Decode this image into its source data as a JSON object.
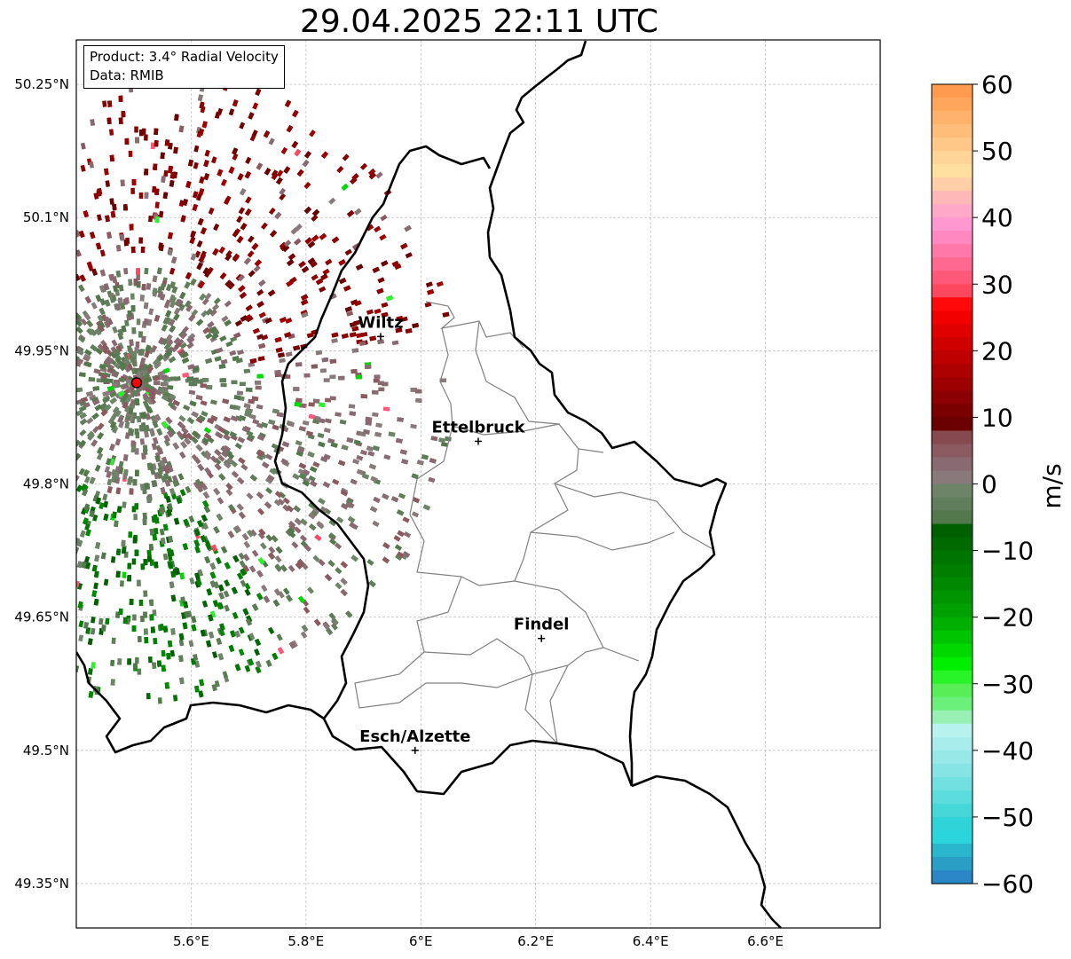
{
  "title": "29.04.2025 22:11 UTC",
  "info": {
    "product": "Product: 3.4° Radial Velocity",
    "data": "Data: RMIB"
  },
  "map": {
    "lon_range": [
      5.4,
      6.8
    ],
    "lat_range": [
      49.3,
      50.3
    ],
    "lat_ticks": [
      {
        "value": 50.25,
        "label": "50.25°N"
      },
      {
        "value": 50.1,
        "label": "50.1°N"
      },
      {
        "value": 49.95,
        "label": "49.95°N"
      },
      {
        "value": 49.8,
        "label": "49.8°N"
      },
      {
        "value": 49.65,
        "label": "49.65°N"
      },
      {
        "value": 49.5,
        "label": "49.5°N"
      },
      {
        "value": 49.35,
        "label": "49.35°N"
      }
    ],
    "lon_ticks": [
      {
        "value": 5.6,
        "label": "5.6°E"
      },
      {
        "value": 5.8,
        "label": "5.8°E"
      },
      {
        "value": 6.0,
        "label": "6°E"
      },
      {
        "value": 6.2,
        "label": "6.2°E"
      },
      {
        "value": 6.4,
        "label": "6.4°E"
      },
      {
        "value": 6.6,
        "label": "6.6°E"
      }
    ],
    "grid": true,
    "radar": {
      "lon": 5.505,
      "lat": 49.914,
      "color": "#ff0000"
    },
    "places": [
      {
        "name": "Wiltz",
        "lon": 5.93,
        "lat": 49.966
      },
      {
        "name": "Ettelbruck",
        "lon": 6.1,
        "lat": 49.848
      },
      {
        "name": "Findel",
        "lon": 6.21,
        "lat": 49.626
      },
      {
        "name": "Esch/Alzette",
        "lon": 5.99,
        "lat": 49.5
      }
    ]
  },
  "colorbar": {
    "label": "m/s",
    "range": [
      -60,
      60
    ],
    "ticks": [
      {
        "value": 60,
        "label": "60"
      },
      {
        "value": 50,
        "label": "50"
      },
      {
        "value": 40,
        "label": "40"
      },
      {
        "value": 30,
        "label": "30"
      },
      {
        "value": 20,
        "label": "20"
      },
      {
        "value": 10,
        "label": "10"
      },
      {
        "value": 0,
        "label": "0"
      },
      {
        "value": -10,
        "label": "−10"
      },
      {
        "value": -20,
        "label": "−20"
      },
      {
        "value": -30,
        "label": "−30"
      },
      {
        "value": -40,
        "label": "−40"
      },
      {
        "value": -50,
        "label": "−50"
      },
      {
        "value": -60,
        "label": "−60"
      }
    ],
    "bands": [
      {
        "from": 58,
        "to": 60,
        "color": "#ff9a4e"
      },
      {
        "from": 56,
        "to": 58,
        "color": "#ffa65c"
      },
      {
        "from": 54,
        "to": 56,
        "color": "#ffb26b"
      },
      {
        "from": 52,
        "to": 54,
        "color": "#ffbd7a"
      },
      {
        "from": 50,
        "to": 52,
        "color": "#ffc888"
      },
      {
        "from": 48,
        "to": 50,
        "color": "#ffd496"
      },
      {
        "from": 46,
        "to": 48,
        "color": "#ffe09e"
      },
      {
        "from": 44,
        "to": 46,
        "color": "#ffd0a8"
      },
      {
        "from": 42,
        "to": 44,
        "color": "#ffb8b8"
      },
      {
        "from": 40,
        "to": 42,
        "color": "#ffa8c8"
      },
      {
        "from": 38,
        "to": 40,
        "color": "#ff98d0"
      },
      {
        "from": 36,
        "to": 38,
        "color": "#ff88c0"
      },
      {
        "from": 34,
        "to": 36,
        "color": "#ff78a8"
      },
      {
        "from": 32,
        "to": 34,
        "color": "#ff6890"
      },
      {
        "from": 30,
        "to": 32,
        "color": "#ff5878"
      },
      {
        "from": 28,
        "to": 30,
        "color": "#ff4860"
      },
      {
        "from": 26,
        "to": 28,
        "color": "#ff0a0a"
      },
      {
        "from": 24,
        "to": 26,
        "color": "#f20000"
      },
      {
        "from": 22,
        "to": 24,
        "color": "#e00000"
      },
      {
        "from": 20,
        "to": 22,
        "color": "#cf0000"
      },
      {
        "from": 18,
        "to": 20,
        "color": "#be0000"
      },
      {
        "from": 16,
        "to": 18,
        "color": "#ad0000"
      },
      {
        "from": 14,
        "to": 16,
        "color": "#9c0000"
      },
      {
        "from": 12,
        "to": 14,
        "color": "#8b0000"
      },
      {
        "from": 10,
        "to": 12,
        "color": "#7a0000"
      },
      {
        "from": 8,
        "to": 10,
        "color": "#6b0000"
      },
      {
        "from": 6,
        "to": 8,
        "color": "#864a4e"
      },
      {
        "from": 4,
        "to": 6,
        "color": "#8a5a60"
      },
      {
        "from": 2,
        "to": 4,
        "color": "#8a6a72"
      },
      {
        "from": 0,
        "to": 2,
        "color": "#887a7a"
      },
      {
        "from": -2,
        "to": 0,
        "color": "#6e8468"
      },
      {
        "from": -4,
        "to": -2,
        "color": "#607e5a"
      },
      {
        "from": -6,
        "to": -4,
        "color": "#52784c"
      },
      {
        "from": -8,
        "to": -6,
        "color": "#006000"
      },
      {
        "from": -10,
        "to": -8,
        "color": "#006a00"
      },
      {
        "from": -12,
        "to": -10,
        "color": "#007400"
      },
      {
        "from": -14,
        "to": -12,
        "color": "#007e00"
      },
      {
        "from": -16,
        "to": -14,
        "color": "#008800"
      },
      {
        "from": -18,
        "to": -16,
        "color": "#009400"
      },
      {
        "from": -20,
        "to": -18,
        "color": "#00a000"
      },
      {
        "from": -22,
        "to": -20,
        "color": "#00b000"
      },
      {
        "from": -24,
        "to": -22,
        "color": "#00c400"
      },
      {
        "from": -26,
        "to": -24,
        "color": "#00d800"
      },
      {
        "from": -28,
        "to": -26,
        "color": "#00ee00"
      },
      {
        "from": -30,
        "to": -28,
        "color": "#28f428"
      },
      {
        "from": -32,
        "to": -30,
        "color": "#58ee58"
      },
      {
        "from": -34,
        "to": -32,
        "color": "#6cf07c"
      },
      {
        "from": -36,
        "to": -34,
        "color": "#98f0b4"
      },
      {
        "from": -38,
        "to": -36,
        "color": "#b8f2ee"
      },
      {
        "from": -40,
        "to": -38,
        "color": "#a8ecec"
      },
      {
        "from": -42,
        "to": -40,
        "color": "#98e8e8"
      },
      {
        "from": -44,
        "to": -42,
        "color": "#86e4e4"
      },
      {
        "from": -46,
        "to": -44,
        "color": "#72e0e0"
      },
      {
        "from": -48,
        "to": -46,
        "color": "#5cdcdc"
      },
      {
        "from": -50,
        "to": -48,
        "color": "#46d8d8"
      },
      {
        "from": -52,
        "to": -50,
        "color": "#30d4d8"
      },
      {
        "from": -54,
        "to": -52,
        "color": "#2ad6dc"
      },
      {
        "from": -56,
        "to": -54,
        "color": "#2ab6cc"
      },
      {
        "from": -58,
        "to": -56,
        "color": "#2a9ec4"
      },
      {
        "from": -60,
        "to": -58,
        "color": "#2a86c4"
      }
    ]
  },
  "colors": {
    "far_inbound": "#7a0000",
    "outbound_green": "#007400",
    "grey_red": "#8a6a72",
    "grey_green": "#5c7c56",
    "border": "#000000",
    "canton_border": "#808080"
  }
}
